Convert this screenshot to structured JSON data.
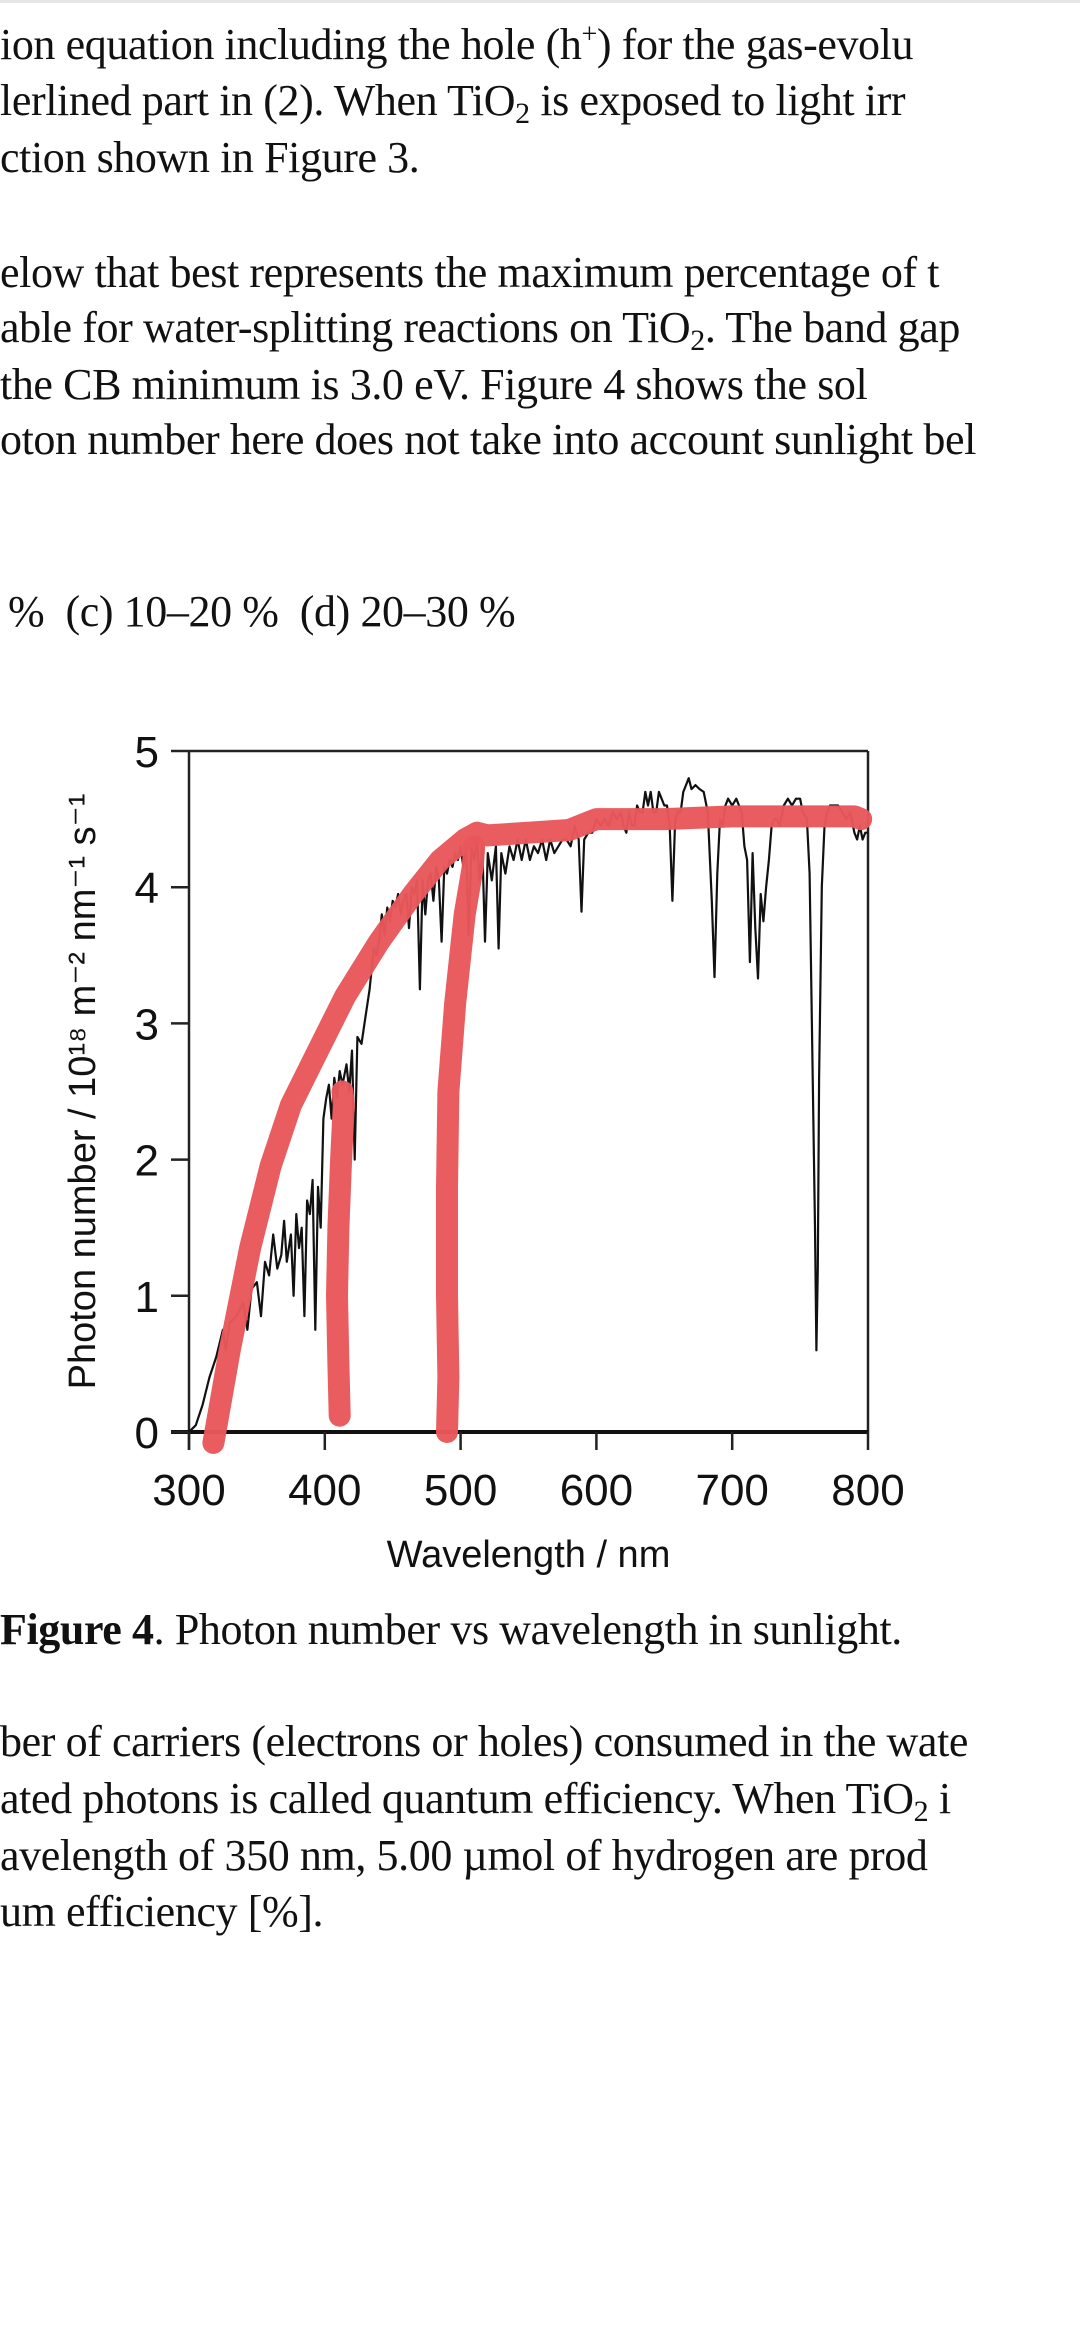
{
  "document": {
    "paragraph_top": [
      {
        "pre": "ion equation including the hole (h",
        "sup": "+",
        "post": ") for the gas-evolu"
      },
      {
        "pre": "lerlined part in (2). When TiO",
        "sub": "2",
        "post": " is exposed to light irr"
      },
      {
        "pre": "ction shown in Figure 3.",
        "sub": "",
        "post": ""
      }
    ],
    "paragraph_question": [
      {
        "pre": "elow that best represents the maximum percentage of t",
        "sub": "",
        "post": ""
      },
      {
        "pre": "able for water-splitting reactions on TiO",
        "sub": "2",
        "post": ". The band gap"
      },
      {
        "pre": "the CB minimum is 3.0 eV. Figure 4 shows the sol",
        "sub": "",
        "post": ""
      },
      {
        "pre": "oton number here does not take into account sunlight bel",
        "sub": "",
        "post": ""
      }
    ],
    "options_line": "%  (c) 10–20 %  (d) 20–30 %",
    "caption": {
      "label": "Figure 4",
      "text": ". Photon number vs wavelength in sunlight."
    },
    "paragraph_bottom": [
      {
        "pre": "ber of carriers (electrons or holes) consumed in the wate",
        "sub": "",
        "post": ""
      },
      {
        "pre": "ated photons is called quantum efficiency. When TiO",
        "sub": "2",
        "post": " i"
      },
      {
        "pre": "avelength of 350 nm, 5.00 µmol of hydrogen are prod",
        "sub": "",
        "post": ""
      },
      {
        "pre": "um efficiency [%].",
        "sub": "",
        "post": ""
      }
    ]
  },
  "chart_data": {
    "type": "line",
    "title": "Figure 4. Photon number vs wavelength in sunlight.",
    "xlabel": "Wavelength / nm",
    "ylabel": "Photon number / 10¹⁸ m⁻² nm⁻¹ s⁻¹",
    "xlim": [
      300,
      800
    ],
    "ylim": [
      0,
      5
    ],
    "xticks": [
      300,
      400,
      500,
      600,
      700,
      800
    ],
    "yticks": [
      0,
      1,
      2,
      3,
      4,
      5
    ],
    "grid": false,
    "legend": "none",
    "series": [
      {
        "name": "solar photon spectrum",
        "color": "#111111",
        "points": [
          [
            300,
            0.0
          ],
          [
            305,
            0.05
          ],
          [
            310,
            0.2
          ],
          [
            315,
            0.4
          ],
          [
            320,
            0.55
          ],
          [
            325,
            0.75
          ],
          [
            327,
            0.6
          ],
          [
            330,
            0.8
          ],
          [
            335,
            0.85
          ],
          [
            340,
            0.95
          ],
          [
            343,
            0.75
          ],
          [
            346,
            1.05
          ],
          [
            350,
            1.1
          ],
          [
            353,
            0.85
          ],
          [
            356,
            1.25
          ],
          [
            359,
            1.15
          ],
          [
            362,
            1.45
          ],
          [
            365,
            1.2
          ],
          [
            368,
            1.3
          ],
          [
            370,
            1.55
          ],
          [
            372,
            1.25
          ],
          [
            375,
            1.45
          ],
          [
            377,
            1.0
          ],
          [
            379,
            1.6
          ],
          [
            381,
            1.35
          ],
          [
            383,
            1.5
          ],
          [
            385,
            0.85
          ],
          [
            387,
            1.7
          ],
          [
            389,
            1.6
          ],
          [
            391,
            1.85
          ],
          [
            393,
            0.75
          ],
          [
            395,
            1.8
          ],
          [
            397,
            1.5
          ],
          [
            399,
            2.3
          ],
          [
            401,
            2.45
          ],
          [
            403,
            2.55
          ],
          [
            405,
            2.3
          ],
          [
            407,
            2.6
          ],
          [
            409,
            2.45
          ],
          [
            411,
            2.65
          ],
          [
            413,
            2.55
          ],
          [
            416,
            2.7
          ],
          [
            418,
            2.5
          ],
          [
            420,
            2.8
          ],
          [
            422,
            2.0
          ],
          [
            424,
            2.9
          ],
          [
            427,
            2.85
          ],
          [
            430,
            3.05
          ],
          [
            433,
            3.25
          ],
          [
            436,
            3.55
          ],
          [
            438,
            3.5
          ],
          [
            440,
            3.6
          ],
          [
            442,
            3.8
          ],
          [
            444,
            3.65
          ],
          [
            446,
            3.85
          ],
          [
            448,
            3.75
          ],
          [
            450,
            3.9
          ],
          [
            452,
            3.85
          ],
          [
            454,
            3.95
          ],
          [
            456,
            3.8
          ],
          [
            458,
            3.9
          ],
          [
            460,
            3.95
          ],
          [
            462,
            3.7
          ],
          [
            464,
            4.0
          ],
          [
            466,
            3.95
          ],
          [
            468,
            4.05
          ],
          [
            470,
            3.25
          ],
          [
            472,
            4.05
          ],
          [
            474,
            3.8
          ],
          [
            476,
            4.05
          ],
          [
            478,
            4.1
          ],
          [
            480,
            3.9
          ],
          [
            482,
            4.15
          ],
          [
            484,
            4.05
          ],
          [
            486,
            3.6
          ],
          [
            488,
            4.15
          ],
          [
            490,
            4.1
          ],
          [
            492,
            4.2
          ],
          [
            494,
            4.15
          ],
          [
            496,
            4.25
          ],
          [
            498,
            4.2
          ],
          [
            500,
            4.3
          ],
          [
            502,
            4.15
          ],
          [
            504,
            4.3
          ],
          [
            506,
            3.65
          ],
          [
            508,
            4.3
          ],
          [
            510,
            4.2
          ],
          [
            512,
            4.35
          ],
          [
            514,
            4.05
          ],
          [
            516,
            4.3
          ],
          [
            518,
            3.6
          ],
          [
            520,
            4.25
          ],
          [
            523,
            4.05
          ],
          [
            526,
            4.3
          ],
          [
            528,
            3.55
          ],
          [
            530,
            4.25
          ],
          [
            533,
            4.1
          ],
          [
            536,
            4.3
          ],
          [
            539,
            4.2
          ],
          [
            542,
            4.35
          ],
          [
            545,
            4.2
          ],
          [
            548,
            4.35
          ],
          [
            551,
            4.2
          ],
          [
            554,
            4.3
          ],
          [
            557,
            4.25
          ],
          [
            560,
            4.35
          ],
          [
            563,
            4.2
          ],
          [
            566,
            4.35
          ],
          [
            569,
            4.25
          ],
          [
            572,
            4.3
          ],
          [
            575,
            4.35
          ],
          [
            578,
            4.35
          ],
          [
            581,
            4.3
          ],
          [
            584,
            4.45
          ],
          [
            587,
            4.35
          ],
          [
            589,
            3.82
          ],
          [
            591,
            4.35
          ],
          [
            594,
            4.4
          ],
          [
            597,
            4.4
          ],
          [
            600,
            4.5
          ],
          [
            603,
            4.45
          ],
          [
            606,
            4.5
          ],
          [
            609,
            4.45
          ],
          [
            612,
            4.55
          ],
          [
            615,
            4.5
          ],
          [
            618,
            4.55
          ],
          [
            620,
            4.45
          ],
          [
            622,
            4.4
          ],
          [
            624,
            4.55
          ],
          [
            626,
            4.45
          ],
          [
            628,
            4.45
          ],
          [
            630,
            4.6
          ],
          [
            632,
            4.55
          ],
          [
            634,
            4.55
          ],
          [
            636,
            4.7
          ],
          [
            638,
            4.6
          ],
          [
            640,
            4.7
          ],
          [
            642,
            4.55
          ],
          [
            644,
            4.55
          ],
          [
            646,
            4.7
          ],
          [
            648,
            4.65
          ],
          [
            650,
            4.6
          ],
          [
            652,
            4.6
          ],
          [
            654,
            4.45
          ],
          [
            656,
            3.9
          ],
          [
            658,
            4.5
          ],
          [
            660,
            4.55
          ],
          [
            662,
            4.55
          ],
          [
            664,
            4.7
          ],
          [
            666,
            4.75
          ],
          [
            668,
            4.8
          ],
          [
            670,
            4.72
          ],
          [
            673,
            4.75
          ],
          [
            676,
            4.72
          ],
          [
            679,
            4.7
          ],
          [
            682,
            4.55
          ],
          [
            685,
            3.9
          ],
          [
            687,
            3.34
          ],
          [
            689,
            4.1
          ],
          [
            691,
            4.5
          ],
          [
            693,
            4.45
          ],
          [
            695,
            4.6
          ],
          [
            697,
            4.65
          ],
          [
            700,
            4.6
          ],
          [
            703,
            4.65
          ],
          [
            705,
            4.6
          ],
          [
            707,
            4.55
          ],
          [
            709,
            4.3
          ],
          [
            711,
            4.2
          ],
          [
            713,
            3.45
          ],
          [
            715,
            4.25
          ],
          [
            717,
            3.7
          ],
          [
            719,
            3.33
          ],
          [
            721,
            3.95
          ],
          [
            723,
            3.75
          ],
          [
            725,
            4.0
          ],
          [
            727,
            4.2
          ],
          [
            729,
            4.45
          ],
          [
            731,
            4.5
          ],
          [
            733,
            4.5
          ],
          [
            735,
            4.45
          ],
          [
            738,
            4.6
          ],
          [
            741,
            4.65
          ],
          [
            744,
            4.6
          ],
          [
            747,
            4.65
          ],
          [
            750,
            4.65
          ],
          [
            752,
            4.55
          ],
          [
            755,
            4.5
          ],
          [
            757,
            4.1
          ],
          [
            759,
            2.8
          ],
          [
            761,
            1.5
          ],
          [
            762,
            0.6
          ],
          [
            763,
            1.2
          ],
          [
            764,
            2.6
          ],
          [
            766,
            4.0
          ],
          [
            768,
            4.45
          ],
          [
            770,
            4.55
          ],
          [
            772,
            4.6
          ],
          [
            775,
            4.6
          ],
          [
            778,
            4.6
          ],
          [
            781,
            4.55
          ],
          [
            784,
            4.5
          ],
          [
            787,
            4.55
          ],
          [
            790,
            4.4
          ],
          [
            792,
            4.35
          ],
          [
            794,
            4.45
          ],
          [
            796,
            4.35
          ],
          [
            798,
            4.4
          ],
          [
            800,
            4.4
          ]
        ]
      }
    ],
    "annotations": {
      "description": "hand-drawn red strokes over the plot",
      "color": "#E8575A",
      "strokes": [
        {
          "name": "envelope-stroke",
          "points": [
            [
              318,
              -0.08
            ],
            [
              330,
              0.6
            ],
            [
              345,
              1.35
            ],
            [
              360,
              1.95
            ],
            [
              375,
              2.4
            ],
            [
              395,
              2.8
            ],
            [
              415,
              3.2
            ],
            [
              440,
              3.6
            ],
            [
              465,
              3.95
            ],
            [
              485,
              4.2
            ],
            [
              503,
              4.35
            ],
            [
              512,
              4.4
            ],
            [
              520,
              4.38
            ],
            [
              550,
              4.4
            ],
            [
              580,
              4.42
            ],
            [
              600,
              4.5
            ],
            [
              650,
              4.5
            ],
            [
              700,
              4.52
            ],
            [
              750,
              4.52
            ],
            [
              790,
              4.52
            ],
            [
              795,
              4.5
            ]
          ]
        },
        {
          "name": "stroke-410nm",
          "points": [
            [
              411,
              0.12
            ],
            [
              410,
              0.5
            ],
            [
              409,
              1.0
            ],
            [
              410,
              1.5
            ],
            [
              412,
              2.0
            ],
            [
              414,
              2.4
            ],
            [
              413,
              2.5
            ]
          ]
        },
        {
          "name": "stroke-490nm",
          "points": [
            [
              490,
              0.0
            ],
            [
              491,
              0.4
            ],
            [
              490,
              1.0
            ],
            [
              490,
              1.8
            ],
            [
              491,
              2.5
            ],
            [
              496,
              3.15
            ],
            [
              503,
              3.8
            ],
            [
              509,
              4.15
            ],
            [
              510,
              4.3
            ]
          ]
        }
      ]
    }
  }
}
